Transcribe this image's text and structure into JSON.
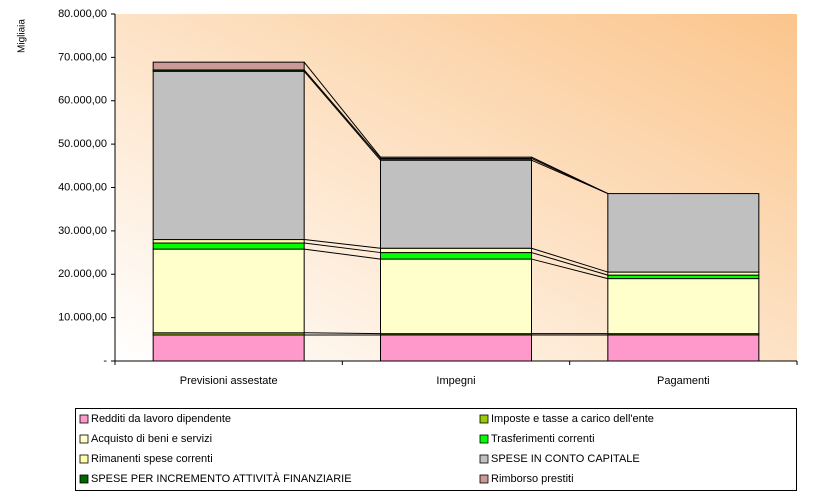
{
  "chart_data": {
    "type": "stacked_bar",
    "y_label": "Migliaia",
    "categories": [
      "Previsioni assestate",
      "Impegni",
      "Pagamenti"
    ],
    "series": [
      {
        "name": "Redditi da lavoro dipendente",
        "color": "#ff99cc",
        "values": [
          6000,
          6000,
          6000
        ]
      },
      {
        "name": "Imposte e tasse a carico dell'ente",
        "color": "#99cc00",
        "values": [
          500,
          300,
          300
        ]
      },
      {
        "name": "Acquisto di beni e servizi",
        "color": "#ffffcc",
        "values": [
          19300,
          17200,
          12700
        ]
      },
      {
        "name": "Trasferimenti correnti",
        "color": "#00ff00",
        "values": [
          1400,
          1500,
          800
        ]
      },
      {
        "name": "Rimanenti spese correnti",
        "color": "#ffffaa",
        "values": [
          800,
          1000,
          700
        ]
      },
      {
        "name": "SPESE IN CONTO CAPITALE",
        "color": "#c0c0c0",
        "values": [
          38800,
          20300,
          18100
        ]
      },
      {
        "name": "SPESE PER INCREMENTO ATTIVITÀ FINANZIARIE",
        "color": "#006600",
        "values": [
          300,
          400,
          0
        ]
      },
      {
        "name": "Rimborso prestiti",
        "color": "#cc9999",
        "values": [
          1800,
          300,
          0
        ]
      }
    ],
    "ylim": [
      0,
      80000
    ],
    "yticks": [
      {
        "value": 0,
        "label": "-"
      },
      {
        "value": 10000,
        "label": "10.000,00"
      },
      {
        "value": 20000,
        "label": "20.000,00"
      },
      {
        "value": 30000,
        "label": "30.000,00"
      },
      {
        "value": 40000,
        "label": "40.000,00"
      },
      {
        "value": 50000,
        "label": "50.000,00"
      },
      {
        "value": 60000,
        "label": "60.000,00"
      },
      {
        "value": 70000,
        "label": "70.000,00"
      },
      {
        "value": 80000,
        "label": "80.000,00"
      }
    ],
    "legend": "bottom"
  }
}
